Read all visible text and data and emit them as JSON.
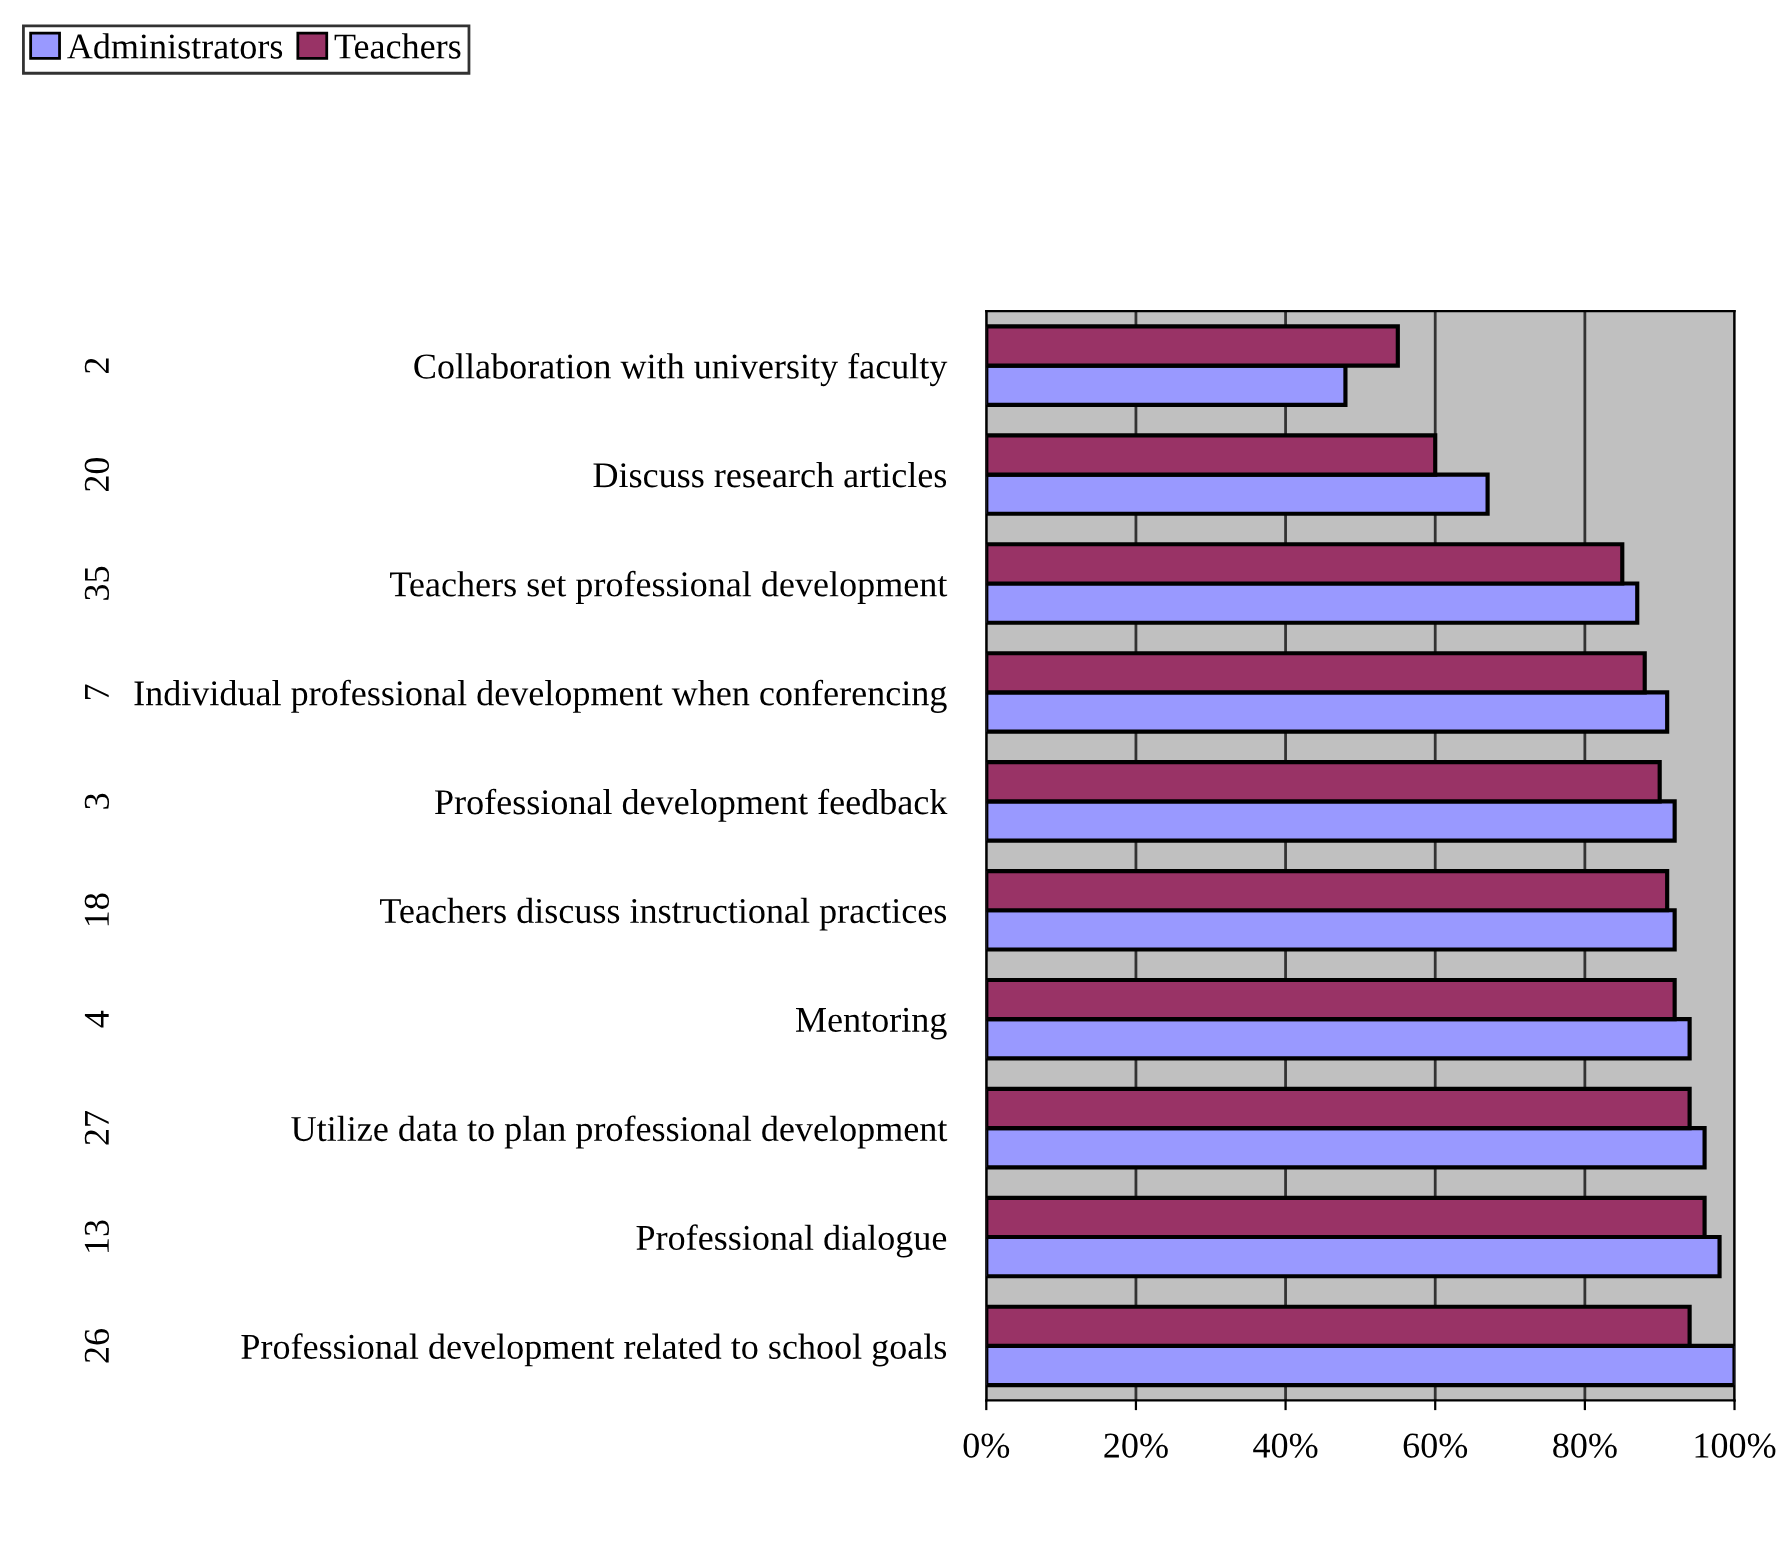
{
  "chart_data": {
    "type": "bar",
    "orientation": "horizontal",
    "categories": [
      "Collaboration with university faculty",
      "Discuss research articles",
      "Teachers set professional development",
      "Individual professional development when conferencing",
      "Professional development feedback",
      "Teachers discuss instructional practices",
      "Mentoring",
      "Utilize data to plan professional development",
      "Professional dialogue",
      "Professional development related to school goals"
    ],
    "series": [
      {
        "name": "Administrators",
        "color": "#9999ff",
        "values": [
          48,
          67,
          87,
          91,
          92,
          92,
          94,
          96,
          98,
          100
        ]
      },
      {
        "name": "Teachers",
        "color": "#993366",
        "values": [
          55,
          60,
          85,
          88,
          90,
          91,
          92,
          94,
          96,
          94
        ]
      }
    ],
    "annotations": [
      "2",
      "20",
      "35",
      "7",
      "3",
      "18",
      "4",
      "27",
      "13",
      "26"
    ],
    "xlim": [
      0,
      100
    ],
    "xticks": [
      {
        "value": 0,
        "label": "0%"
      },
      {
        "value": 20,
        "label": "20%"
      },
      {
        "value": 40,
        "label": "40%"
      },
      {
        "value": 60,
        "label": "60%"
      },
      {
        "value": 80,
        "label": "80%"
      },
      {
        "value": 100,
        "label": "100%"
      }
    ],
    "grid": "x",
    "legend": "top left"
  }
}
